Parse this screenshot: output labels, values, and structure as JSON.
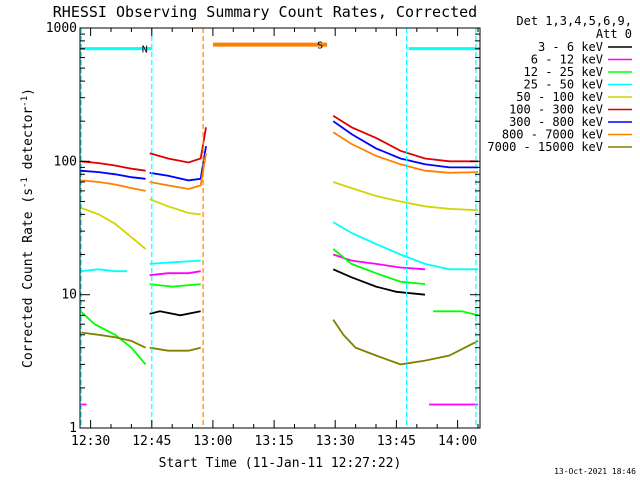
{
  "chart_data": {
    "type": "line",
    "title": "RHESSI Observing Summary Count Rates, Corrected",
    "xlabel": "Start Time (11-Jan-11 12:27:22)",
    "ylabel": "Corrected Count Rate (s^-1 detector^-1)",
    "ylabel_main": "Corrected Count Rate (s",
    "ylabel_sup1": "-1",
    "ylabel_mid": " detector",
    "ylabel_sup2": "-1",
    "ylabel_end": ")",
    "x_unit": "minutes since 12:30",
    "xlim": [
      -2.6,
      95.5
    ],
    "ylim": [
      1,
      1000
    ],
    "yscale": "log",
    "x_ticks": [
      {
        "value": 0,
        "label": "12:30"
      },
      {
        "value": 15,
        "label": "12:45"
      },
      {
        "value": 30,
        "label": "13:00"
      },
      {
        "value": 45,
        "label": "13:15"
      },
      {
        "value": 60,
        "label": "13:30"
      },
      {
        "value": 75,
        "label": "13:45"
      },
      {
        "value": 90,
        "label": "14:00"
      }
    ],
    "y_ticks": [
      {
        "value": 1,
        "label": "1"
      },
      {
        "value": 10,
        "label": "10"
      },
      {
        "value": 100,
        "label": "100"
      },
      {
        "value": 1000,
        "label": "1000"
      }
    ],
    "legend": {
      "position": "right",
      "header": [
        "Det 1,3,4,5,6,9,",
        "Att 0"
      ],
      "entries": [
        {
          "label": "3 - 6 keV",
          "color": "#000000"
        },
        {
          "label": "6 - 12 keV",
          "color": "#ff00ff"
        },
        {
          "label": "12 - 25 keV",
          "color": "#00ff00"
        },
        {
          "label": "25 - 50 keV",
          "color": "#00ffff"
        },
        {
          "label": "50 - 100 keV",
          "color": "#d4d400"
        },
        {
          "label": "100 - 300 keV",
          "color": "#e00000"
        },
        {
          "label": "300 - 800 keV",
          "color": "#0000ff"
        },
        {
          "label": "800 - 7000 keV",
          "color": "#ff8000"
        },
        {
          "label": "7000 - 15000 keV",
          "color": "#808000"
        }
      ]
    },
    "annotations": [
      {
        "type": "night",
        "label": "N",
        "color": "#00ffff",
        "x_start": -2.6,
        "x_end": 15,
        "level": 700
      },
      {
        "type": "night",
        "label": "",
        "color": "#00ffff",
        "x_start": 78,
        "x_end": 95.5,
        "level": 700
      },
      {
        "type": "saa",
        "label": "S",
        "color": "#ff8000",
        "x_start": 30,
        "x_end": 58,
        "level": 750
      }
    ],
    "vlines": [
      {
        "x": -2.3,
        "color": "#00ffff"
      },
      {
        "x": 15,
        "color": "#00ffff"
      },
      {
        "x": 27.6,
        "color": "#ff8000"
      },
      {
        "x": 77.5,
        "color": "#00ffff"
      },
      {
        "x": 94.5,
        "color": "#00ffff"
      }
    ],
    "series": [
      {
        "name": "3 - 6 keV",
        "color": "#000000",
        "segments": [
          [
            [
              14.5,
              7.2
            ],
            [
              17,
              7.5
            ],
            [
              22,
              7.0
            ],
            [
              27,
              7.5
            ]
          ],
          [
            [
              59.5,
              15.5
            ],
            [
              64,
              13.5
            ],
            [
              70,
              11.5
            ],
            [
              75,
              10.5
            ],
            [
              82,
              10.0
            ]
          ]
        ]
      },
      {
        "name": "6 - 12 keV",
        "color": "#ff00ff",
        "segments": [
          [
            [
              -2.5,
              1.5
            ],
            [
              -1,
              1.5
            ]
          ],
          [
            [
              14.5,
              14.0
            ],
            [
              19,
              14.5
            ],
            [
              24,
              14.5
            ],
            [
              27,
              15.0
            ]
          ],
          [
            [
              59.5,
              20.0
            ],
            [
              64,
              18.0
            ],
            [
              70,
              17.0
            ],
            [
              76,
              16.0
            ],
            [
              82,
              15.5
            ]
          ],
          [
            [
              83,
              1.5
            ],
            [
              87,
              1.5
            ],
            [
              91,
              1.5
            ],
            [
              95,
              1.5
            ]
          ]
        ]
      },
      {
        "name": "12 - 25 keV",
        "color": "#00ff00",
        "segments": [
          [
            [
              -2.5,
              7.5
            ],
            [
              1,
              6.0
            ],
            [
              6,
              5.0
            ],
            [
              10,
              4.0
            ],
            [
              13.5,
              3.0
            ]
          ],
          [
            [
              14.5,
              12.0
            ],
            [
              20,
              11.5
            ],
            [
              27,
              12.0
            ]
          ],
          [
            [
              59.5,
              22.0
            ],
            [
              64,
              17.0
            ],
            [
              70,
              14.5
            ],
            [
              76,
              12.5
            ],
            [
              82,
              12.0
            ]
          ],
          [
            [
              84,
              7.5
            ],
            [
              88,
              7.5
            ],
            [
              91,
              7.5
            ],
            [
              95,
              7.0
            ]
          ]
        ]
      },
      {
        "name": "25 - 50 keV",
        "color": "#00ffff",
        "segments": [
          [
            [
              -2.5,
              15.0
            ],
            [
              2,
              15.5
            ],
            [
              6,
              15.0
            ],
            [
              9,
              15.0
            ]
          ],
          [
            [
              14.5,
              17.0
            ],
            [
              20,
              17.5
            ],
            [
              27,
              18.0
            ]
          ],
          [
            [
              59.5,
              35.0
            ],
            [
              64,
              29.0
            ],
            [
              70,
              24.0
            ],
            [
              76,
              20.0
            ],
            [
              82,
              17.0
            ],
            [
              88,
              15.5
            ],
            [
              95,
              15.5
            ]
          ]
        ]
      },
      {
        "name": "50 - 100 keV",
        "color": "#d4d400",
        "segments": [
          [
            [
              -2.5,
              45.0
            ],
            [
              2,
              40.0
            ],
            [
              6,
              34.0
            ],
            [
              10,
              27.0
            ],
            [
              13.5,
              22.0
            ]
          ],
          [
            [
              14.5,
              52.0
            ],
            [
              19,
              46.0
            ],
            [
              24,
              41.0
            ],
            [
              27,
              40.0
            ]
          ],
          [
            [
              59.5,
              70.0
            ],
            [
              64,
              63.0
            ],
            [
              70,
              55.0
            ],
            [
              76,
              50.0
            ],
            [
              82,
              46.0
            ],
            [
              88,
              44.0
            ],
            [
              95,
              43.0
            ]
          ]
        ]
      },
      {
        "name": "100 - 300 keV",
        "color": "#e00000",
        "segments": [
          [
            [
              -2.5,
              100.0
            ],
            [
              2,
              97.0
            ],
            [
              6,
              93.0
            ],
            [
              10,
              88.0
            ],
            [
              13.5,
              85.0
            ]
          ],
          [
            [
              14.5,
              115.0
            ],
            [
              19,
              105.0
            ],
            [
              24,
              98.0
            ],
            [
              27,
              105.0
            ],
            [
              28.3,
              180.0
            ]
          ],
          [
            [
              59.5,
              220.0
            ],
            [
              64,
              180.0
            ],
            [
              70,
              150.0
            ],
            [
              76,
              120.0
            ],
            [
              82,
              105.0
            ],
            [
              88,
              100.0
            ],
            [
              95,
              100.0
            ]
          ]
        ]
      },
      {
        "name": "300 - 800 keV",
        "color": "#0000ff",
        "segments": [
          [
            [
              -2.5,
              85.0
            ],
            [
              2,
              83.0
            ],
            [
              6,
              80.0
            ],
            [
              10,
              76.0
            ],
            [
              13.5,
              74.0
            ]
          ],
          [
            [
              14.5,
              82.0
            ],
            [
              19,
              78.0
            ],
            [
              24,
              72.0
            ],
            [
              27,
              74.0
            ],
            [
              28.3,
              130.0
            ]
          ],
          [
            [
              59.5,
              200.0
            ],
            [
              64,
              160.0
            ],
            [
              70,
              125.0
            ],
            [
              76,
              105.0
            ],
            [
              82,
              95.0
            ],
            [
              88,
              90.0
            ],
            [
              95,
              90.0
            ]
          ]
        ]
      },
      {
        "name": "800 - 7000 keV",
        "color": "#ff8000",
        "segments": [
          [
            [
              -2.5,
              72.0
            ],
            [
              2,
              70.0
            ],
            [
              6,
              67.0
            ],
            [
              10,
              63.0
            ],
            [
              13.5,
              60.0
            ]
          ],
          [
            [
              14.5,
              70.0
            ],
            [
              19,
              66.0
            ],
            [
              24,
              62.0
            ],
            [
              27,
              66.0
            ],
            [
              28.3,
              115.0
            ]
          ],
          [
            [
              59.5,
              165.0
            ],
            [
              64,
              135.0
            ],
            [
              70,
              110.0
            ],
            [
              76,
              95.0
            ],
            [
              82,
              85.0
            ],
            [
              88,
              82.0
            ],
            [
              95,
              83.0
            ]
          ]
        ]
      },
      {
        "name": "7000 - 15000 keV",
        "color": "#808000",
        "segments": [
          [
            [
              -2.5,
              5.2
            ],
            [
              2,
              5.0
            ],
            [
              6,
              4.8
            ],
            [
              10,
              4.5
            ],
            [
              13.5,
              4.0
            ]
          ],
          [
            [
              14.5,
              4.0
            ],
            [
              19,
              3.8
            ],
            [
              24,
              3.8
            ],
            [
              27,
              4.0
            ]
          ],
          [
            [
              59.5,
              6.5
            ],
            [
              62,
              5.0
            ],
            [
              65,
              4.0
            ],
            [
              70,
              3.5
            ],
            [
              76,
              3.0
            ],
            [
              82,
              3.2
            ],
            [
              88,
              3.5
            ],
            [
              95,
              4.5
            ]
          ]
        ]
      }
    ],
    "grid": false,
    "footer": "13-Oct-2021 18:46"
  }
}
